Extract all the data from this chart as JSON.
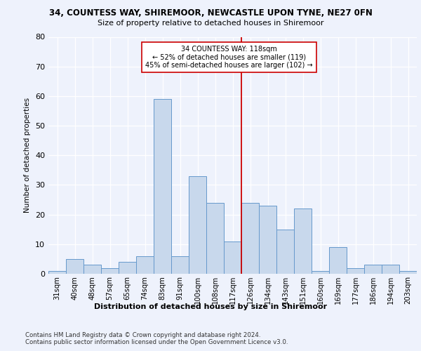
{
  "title_line1": "34, COUNTESS WAY, SHIREMOOR, NEWCASTLE UPON TYNE, NE27 0FN",
  "title_line2": "Size of property relative to detached houses in Shiremoor",
  "xlabel": "Distribution of detached houses by size in Shiremoor",
  "ylabel": "Number of detached properties",
  "footer": "Contains HM Land Registry data © Crown copyright and database right 2024.\nContains public sector information licensed under the Open Government Licence v3.0.",
  "categories": [
    "31sqm",
    "40sqm",
    "48sqm",
    "57sqm",
    "65sqm",
    "74sqm",
    "83sqm",
    "91sqm",
    "100sqm",
    "108sqm",
    "117sqm",
    "126sqm",
    "134sqm",
    "143sqm",
    "151sqm",
    "160sqm",
    "169sqm",
    "177sqm",
    "186sqm",
    "194sqm",
    "203sqm"
  ],
  "values": [
    1,
    5,
    3,
    2,
    4,
    6,
    59,
    6,
    33,
    24,
    11,
    24,
    23,
    15,
    22,
    1,
    9,
    2,
    3,
    3,
    1
  ],
  "bar_color": "#c8d8ec",
  "bar_edge_color": "#6699cc",
  "annotation_box_text": "34 COUNTESS WAY: 118sqm\n← 52% of detached houses are smaller (119)\n45% of semi-detached houses are larger (102) →",
  "marker_index": 10,
  "marker_color": "#cc0000",
  "ylim": [
    0,
    80
  ],
  "yticks": [
    0,
    10,
    20,
    30,
    40,
    50,
    60,
    70,
    80
  ],
  "background_color": "#eef2fc",
  "grid_color": "#ffffff",
  "annotation_box_color": "#ffffff",
  "annotation_box_edge_color": "#cc0000"
}
